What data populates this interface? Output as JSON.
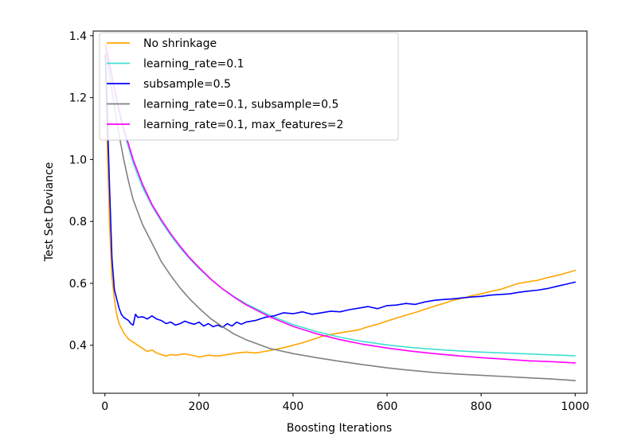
{
  "chart_data": {
    "type": "line",
    "title": "",
    "xlabel": "Boosting Iterations",
    "ylabel": "Test Set Deviance",
    "xlim": [
      -25,
      1025
    ],
    "ylim": [
      0.245,
      1.415
    ],
    "xticks": [
      0,
      200,
      400,
      600,
      800,
      1000
    ],
    "yticks": [
      0.4,
      0.6,
      0.8,
      1.0,
      1.2,
      1.4
    ],
    "ytick_labels": [
      "0.4",
      "0.6",
      "0.8",
      "1.0",
      "1.2",
      "1.4"
    ],
    "grid": false,
    "legend_position": "upper-left",
    "series": [
      {
        "name": "No shrinkage",
        "color": "#ffa500",
        "x": [
          1,
          5,
          10,
          15,
          20,
          25,
          30,
          40,
          50,
          60,
          70,
          80,
          90,
          100,
          110,
          120,
          130,
          140,
          150,
          170,
          190,
          200,
          220,
          240,
          260,
          280,
          300,
          320,
          340,
          360,
          380,
          400,
          420,
          440,
          460,
          480,
          500,
          520,
          540,
          560,
          580,
          600,
          620,
          640,
          660,
          680,
          700,
          720,
          740,
          760,
          780,
          800,
          820,
          840,
          860,
          880,
          900,
          920,
          940,
          960,
          980,
          1000
        ],
        "values": [
          1.33,
          1.05,
          0.78,
          0.62,
          0.55,
          0.5,
          0.47,
          0.44,
          0.42,
          0.41,
          0.4,
          0.39,
          0.38,
          0.385,
          0.375,
          0.37,
          0.365,
          0.37,
          0.368,
          0.372,
          0.366,
          0.362,
          0.368,
          0.365,
          0.37,
          0.375,
          0.378,
          0.375,
          0.38,
          0.386,
          0.392,
          0.4,
          0.408,
          0.418,
          0.428,
          0.435,
          0.44,
          0.445,
          0.45,
          0.46,
          0.468,
          0.478,
          0.488,
          0.497,
          0.506,
          0.516,
          0.526,
          0.535,
          0.545,
          0.552,
          0.56,
          0.566,
          0.574,
          0.58,
          0.59,
          0.6,
          0.605,
          0.61,
          0.618,
          0.625,
          0.633,
          0.642
        ]
      },
      {
        "name": "learning_rate=0.1",
        "color": "#40e0d0",
        "x": [
          1,
          5,
          10,
          20,
          30,
          40,
          50,
          60,
          80,
          100,
          120,
          140,
          160,
          180,
          200,
          225,
          250,
          275,
          300,
          350,
          400,
          450,
          500,
          550,
          600,
          650,
          700,
          750,
          800,
          850,
          900,
          950,
          1000
        ],
        "values": [
          1.37,
          1.35,
          1.3,
          1.22,
          1.15,
          1.09,
          1.04,
          0.99,
          0.91,
          0.85,
          0.8,
          0.755,
          0.715,
          0.68,
          0.648,
          0.613,
          0.583,
          0.557,
          0.534,
          0.497,
          0.467,
          0.444,
          0.426,
          0.412,
          0.401,
          0.393,
          0.387,
          0.382,
          0.378,
          0.375,
          0.372,
          0.369,
          0.366
        ]
      },
      {
        "name": "subsample=0.5",
        "color": "#0000ff",
        "x": [
          1,
          5,
          10,
          15,
          20,
          25,
          30,
          35,
          40,
          45,
          50,
          55,
          60,
          65,
          70,
          80,
          90,
          100,
          110,
          120,
          130,
          140,
          150,
          160,
          170,
          180,
          190,
          200,
          210,
          220,
          230,
          240,
          250,
          260,
          270,
          280,
          290,
          300,
          320,
          340,
          360,
          380,
          400,
          420,
          440,
          460,
          480,
          500,
          520,
          540,
          560,
          580,
          600,
          620,
          640,
          660,
          680,
          700,
          720,
          740,
          760,
          780,
          800,
          820,
          840,
          860,
          880,
          900,
          920,
          940,
          960,
          980,
          1000
        ],
        "values": [
          1.34,
          1.15,
          0.9,
          0.68,
          0.58,
          0.55,
          0.52,
          0.5,
          0.49,
          0.485,
          0.48,
          0.47,
          0.465,
          0.5,
          0.49,
          0.492,
          0.485,
          0.495,
          0.485,
          0.48,
          0.47,
          0.475,
          0.465,
          0.47,
          0.478,
          0.472,
          0.468,
          0.475,
          0.462,
          0.47,
          0.46,
          0.465,
          0.458,
          0.47,
          0.462,
          0.475,
          0.468,
          0.475,
          0.48,
          0.49,
          0.495,
          0.505,
          0.502,
          0.508,
          0.5,
          0.505,
          0.51,
          0.508,
          0.515,
          0.52,
          0.525,
          0.518,
          0.528,
          0.53,
          0.535,
          0.532,
          0.54,
          0.545,
          0.548,
          0.55,
          0.553,
          0.556,
          0.558,
          0.562,
          0.564,
          0.566,
          0.571,
          0.575,
          0.578,
          0.583,
          0.59,
          0.597,
          0.604
        ]
      },
      {
        "name": "learning_rate=0.1, subsample=0.5",
        "color": "#808080",
        "x": [
          1,
          5,
          10,
          20,
          30,
          40,
          50,
          60,
          80,
          100,
          120,
          140,
          160,
          180,
          200,
          225,
          250,
          275,
          300,
          350,
          400,
          450,
          500,
          550,
          600,
          650,
          700,
          750,
          800,
          850,
          900,
          950,
          1000
        ],
        "values": [
          1.37,
          1.33,
          1.27,
          1.17,
          1.08,
          1.0,
          0.93,
          0.87,
          0.79,
          0.73,
          0.67,
          0.625,
          0.585,
          0.55,
          0.52,
          0.486,
          0.46,
          0.436,
          0.418,
          0.39,
          0.373,
          0.36,
          0.348,
          0.337,
          0.327,
          0.319,
          0.312,
          0.307,
          0.303,
          0.299,
          0.295,
          0.291,
          0.286
        ]
      },
      {
        "name": "learning_rate=0.1, max_features=2",
        "color": "#ff00ff",
        "x": [
          1,
          5,
          10,
          20,
          30,
          40,
          50,
          60,
          80,
          100,
          120,
          140,
          160,
          180,
          200,
          225,
          250,
          275,
          300,
          350,
          400,
          450,
          500,
          550,
          600,
          650,
          700,
          750,
          800,
          850,
          900,
          950,
          1000
        ],
        "values": [
          1.37,
          1.35,
          1.31,
          1.23,
          1.16,
          1.1,
          1.05,
          1.0,
          0.92,
          0.855,
          0.805,
          0.76,
          0.72,
          0.683,
          0.651,
          0.614,
          0.582,
          0.555,
          0.531,
          0.492,
          0.461,
          0.437,
          0.418,
          0.403,
          0.391,
          0.381,
          0.373,
          0.366,
          0.36,
          0.355,
          0.35,
          0.347,
          0.343
        ]
      }
    ]
  }
}
